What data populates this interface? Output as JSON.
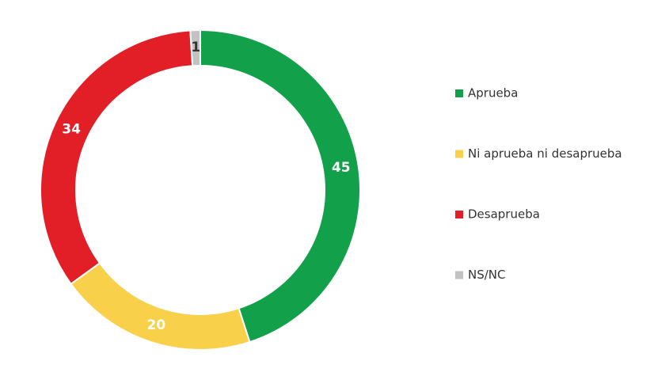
{
  "chart_data": {
    "type": "donut",
    "categories": [
      "Aprueba",
      "Ni aprueba ni desaprueba",
      "Desaprueba",
      "NS/NC"
    ],
    "values": [
      45,
      20,
      34,
      1
    ],
    "colors": [
      "#12a04b",
      "#f8d04a",
      "#e21f26",
      "#c2c2c2"
    ],
    "legend": "right"
  }
}
